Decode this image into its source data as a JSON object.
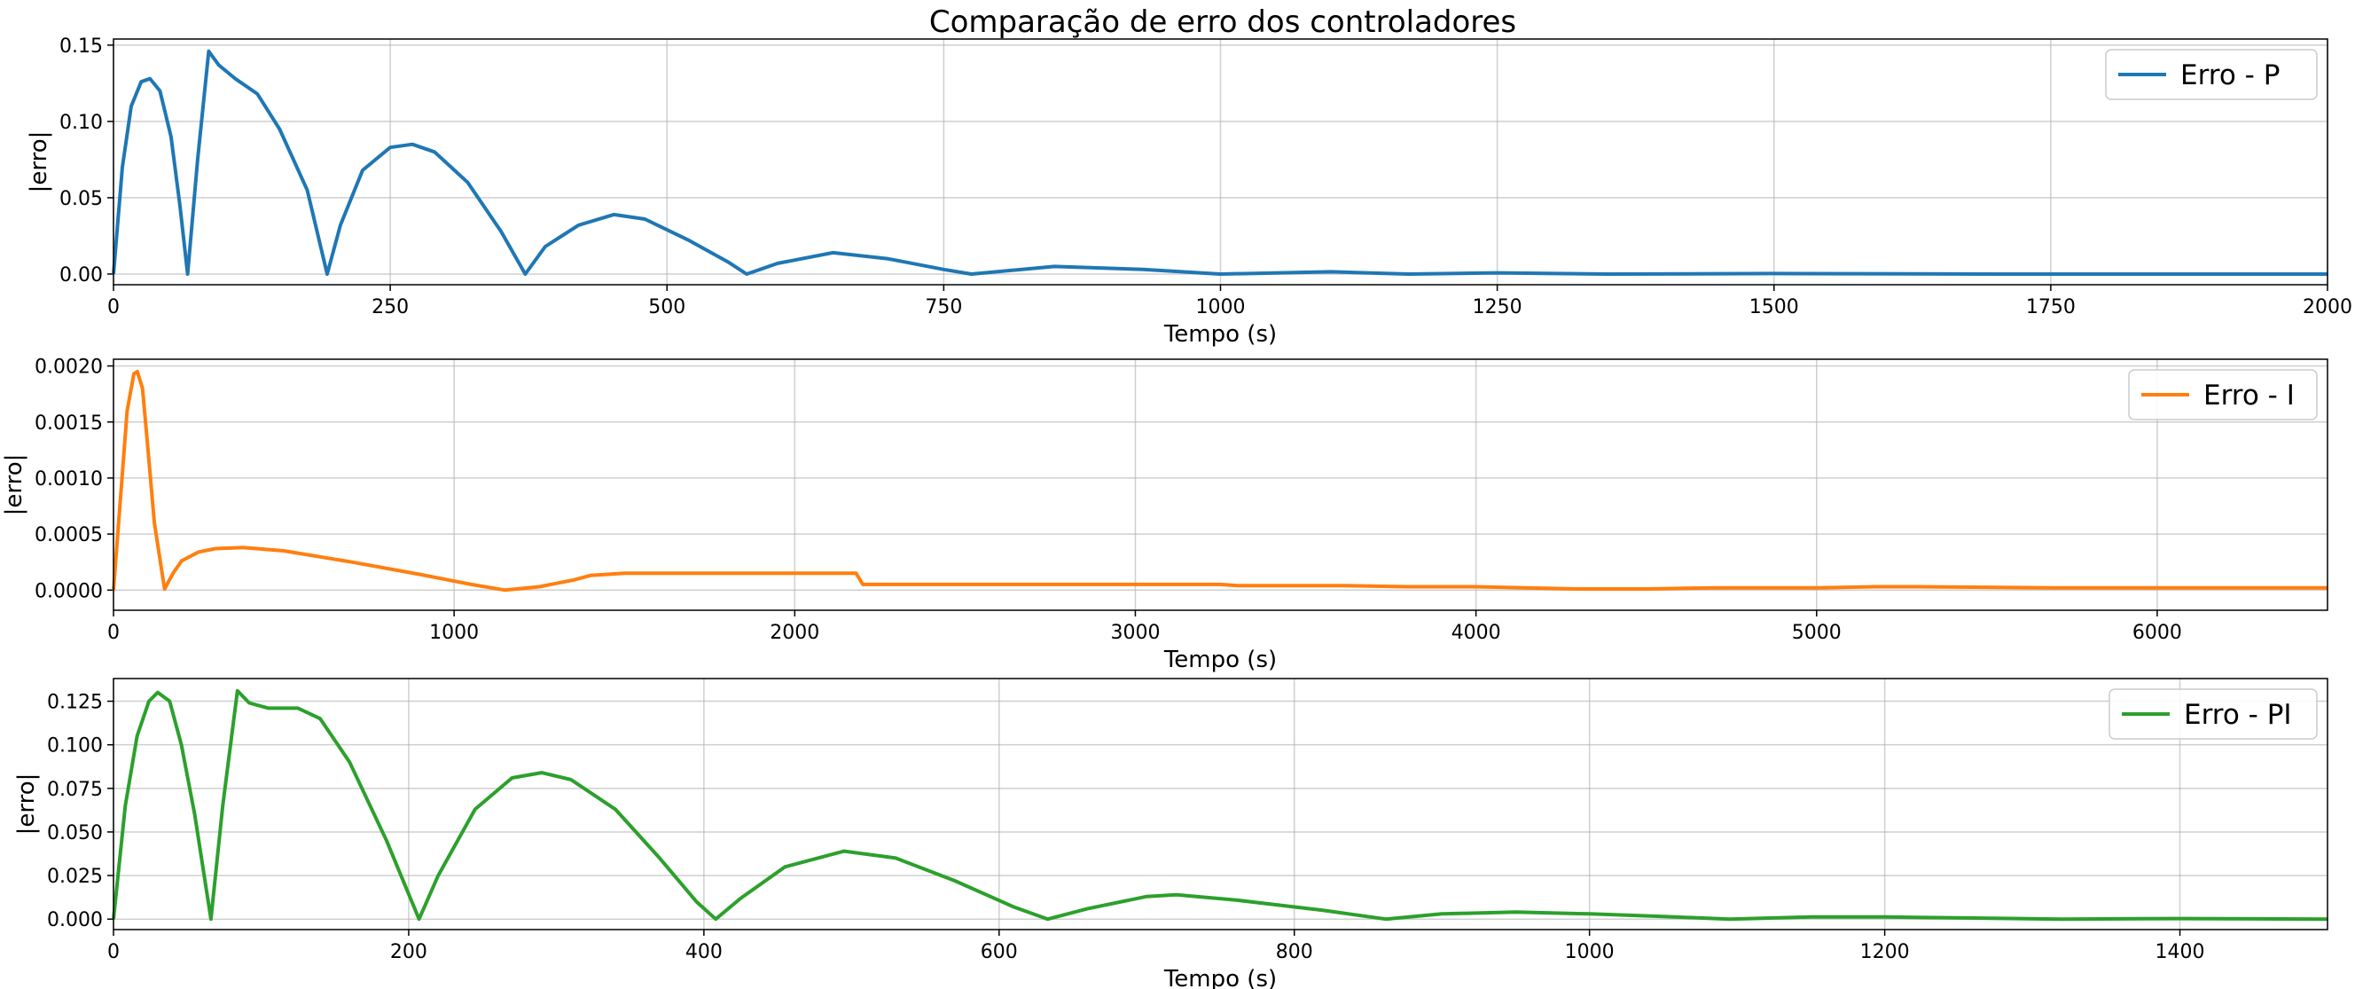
{
  "figure": {
    "title": "Comparação de erro dos controladores"
  },
  "chart_data": [
    {
      "type": "line",
      "xlabel": "Tempo (s)",
      "ylabel": "|erro|",
      "xlim": [
        0,
        2000
      ],
      "ylim": [
        -0.007,
        0.154
      ],
      "xticks": [
        "0",
        "250",
        "500",
        "750",
        "1000",
        "1250",
        "1500",
        "1750",
        "2000"
      ],
      "xtick_values": [
        0,
        250,
        500,
        750,
        1000,
        1250,
        1500,
        1750,
        2000
      ],
      "yticks": [
        "0.00",
        "0.05",
        "0.10",
        "0.15"
      ],
      "ytick_values": [
        0,
        0.05,
        0.1,
        0.15
      ],
      "grid": true,
      "legend_position": "top-right",
      "series": [
        {
          "name": "Erro - P",
          "color": "#1f77b4",
          "x": [
            0,
            8,
            16,
            25,
            33,
            42,
            52,
            60,
            67,
            76,
            86,
            95,
            110,
            130,
            150,
            175,
            193,
            205,
            225,
            250,
            270,
            290,
            320,
            350,
            372,
            390,
            420,
            452,
            480,
            520,
            555,
            572,
            600,
            650,
            700,
            750,
            775,
            850,
            930,
            1000,
            1100,
            1170,
            1250,
            1350,
            1500,
            1700,
            2000
          ],
          "y": [
            0,
            0.07,
            0.11,
            0.126,
            0.128,
            0.12,
            0.09,
            0.045,
            0,
            0.075,
            0.146,
            0.137,
            0.128,
            0.118,
            0.095,
            0.055,
            0,
            0.032,
            0.068,
            0.083,
            0.085,
            0.08,
            0.06,
            0.028,
            0,
            0.018,
            0.032,
            0.039,
            0.036,
            0.022,
            0.008,
            0,
            0.007,
            0.014,
            0.01,
            0.003,
            0,
            0.005,
            0.003,
            0,
            0.0015,
            0,
            0.0008,
            0,
            0.0003,
            0,
            0
          ]
        }
      ]
    },
    {
      "type": "line",
      "xlabel": "Tempo (s)",
      "ylabel": "|erro|",
      "xlim": [
        0,
        6500
      ],
      "ylim": [
        -0.00018,
        0.00206
      ],
      "xticks": [
        "0",
        "1000",
        "2000",
        "3000",
        "4000",
        "5000",
        "6000"
      ],
      "xtick_values": [
        0,
        1000,
        2000,
        3000,
        4000,
        5000,
        6000
      ],
      "yticks": [
        "0.0000",
        "0.0005",
        "0.0010",
        "0.0015",
        "0.0020"
      ],
      "ytick_values": [
        0,
        0.0005,
        0.001,
        0.0015,
        0.002
      ],
      "grid": true,
      "legend_position": "top-right",
      "series": [
        {
          "name": "Erro - I",
          "color": "#ff7f0e",
          "x": [
            0,
            20,
            40,
            60,
            70,
            85,
            100,
            120,
            150,
            175,
            200,
            250,
            300,
            380,
            500,
            700,
            900,
            1050,
            1150,
            1250,
            1300,
            1350,
            1400,
            1500,
            2000,
            2180,
            2200,
            2600,
            2660,
            2700,
            3000,
            3250,
            3300,
            3600,
            3800,
            4000,
            4300,
            4500,
            4700,
            5000,
            5170,
            5300,
            5700,
            6000,
            6500
          ],
          "y": [
            0,
            0.0008,
            0.0016,
            0.00193,
            0.00195,
            0.0018,
            0.0013,
            0.0006,
            1e-05,
            0.00015,
            0.00026,
            0.00034,
            0.00037,
            0.00038,
            0.00035,
            0.00025,
            0.00014,
            5e-05,
            0.0,
            3e-05,
            6e-05,
            9e-05,
            0.00013,
            0.00015,
            0.00015,
            0.00015,
            5e-05,
            5e-05,
            5e-05,
            5e-05,
            5e-05,
            5e-05,
            4e-05,
            4e-05,
            3e-05,
            3e-05,
            1e-05,
            1e-05,
            2e-05,
            2e-05,
            3e-05,
            3e-05,
            2e-05,
            2e-05,
            2e-05
          ]
        }
      ]
    },
    {
      "type": "line",
      "xlabel": "Tempo (s)",
      "ylabel": "|erro|",
      "xlim": [
        0,
        1500
      ],
      "ylim": [
        -0.006,
        0.138
      ],
      "xticks": [
        "0",
        "200",
        "400",
        "600",
        "800",
        "1000",
        "1200",
        "1400"
      ],
      "xtick_values": [
        0,
        200,
        400,
        600,
        800,
        1000,
        1200,
        1400
      ],
      "yticks": [
        "0.000",
        "0.025",
        "0.050",
        "0.075",
        "0.100",
        "0.125"
      ],
      "ytick_values": [
        0,
        0.025,
        0.05,
        0.075,
        0.1,
        0.125
      ],
      "grid": true,
      "legend_position": "top-right",
      "series": [
        {
          "name": "Erro - PI",
          "color": "#2ca02c",
          "x": [
            0,
            8,
            16,
            24,
            30,
            38,
            46,
            55,
            66,
            74,
            84,
            92,
            105,
            125,
            140,
            160,
            185,
            207,
            220,
            245,
            270,
            290,
            310,
            340,
            370,
            395,
            408,
            425,
            455,
            495,
            530,
            570,
            610,
            633,
            660,
            700,
            720,
            760,
            820,
            862,
            900,
            950,
            1000,
            1050,
            1095,
            1150,
            1200,
            1260,
            1320,
            1400,
            1500
          ],
          "y": [
            0,
            0.065,
            0.105,
            0.125,
            0.13,
            0.125,
            0.1,
            0.06,
            0,
            0.065,
            0.131,
            0.124,
            0.121,
            0.121,
            0.115,
            0.09,
            0.045,
            0,
            0.025,
            0.063,
            0.081,
            0.084,
            0.08,
            0.063,
            0.035,
            0.01,
            0,
            0.012,
            0.03,
            0.039,
            0.035,
            0.022,
            0.007,
            0,
            0.006,
            0.013,
            0.014,
            0.011,
            0.005,
            0,
            0.003,
            0.004,
            0.003,
            0.0015,
            0,
            0.0012,
            0.0012,
            0.0006,
            0,
            0.0003,
            0
          ]
        }
      ]
    }
  ]
}
